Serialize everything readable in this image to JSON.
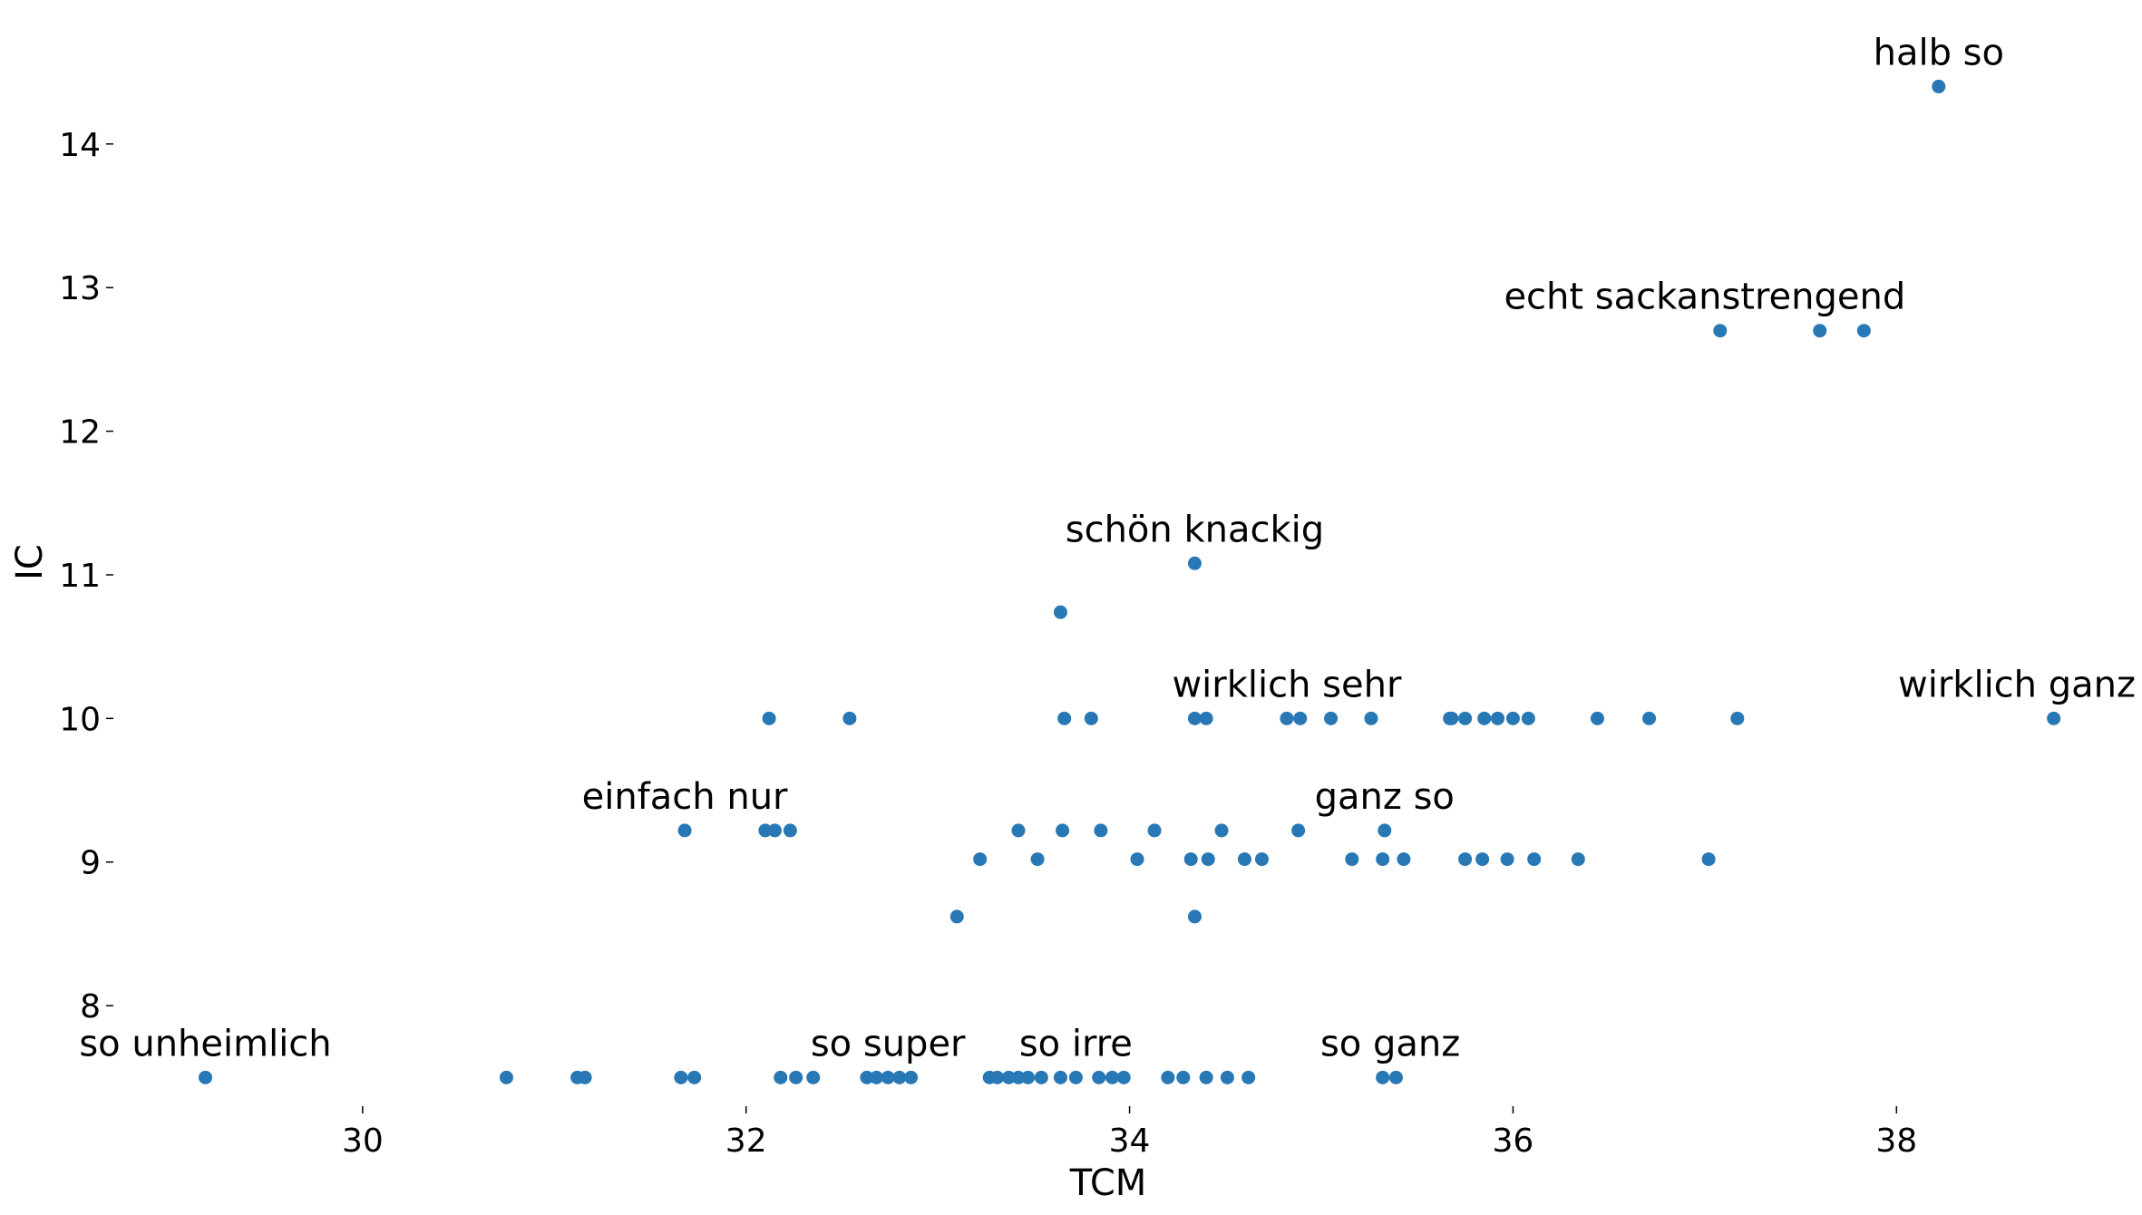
{
  "chart_data": {
    "type": "scatter",
    "title": "",
    "xlabel": "TCM",
    "ylabel": "IC",
    "xlim": [
      28.7,
      39.2
    ],
    "ylim": [
      7.3,
      14.75
    ],
    "x_ticks": [
      30,
      32,
      34,
      36,
      38
    ],
    "y_ticks": [
      8,
      9,
      10,
      11,
      12,
      13,
      14
    ],
    "grid": false,
    "legend": "none",
    "color": "#2878b5",
    "series": [
      {
        "points": [
          [
            38.22,
            14.4
          ],
          [
            37.08,
            12.7
          ],
          [
            37.6,
            12.7
          ],
          [
            37.83,
            12.7
          ],
          [
            34.34,
            11.08
          ],
          [
            33.64,
            10.74
          ],
          [
            32.12,
            10.0
          ],
          [
            32.54,
            10.0
          ],
          [
            33.66,
            10.0
          ],
          [
            33.8,
            10.0
          ],
          [
            34.34,
            10.0
          ],
          [
            34.4,
            10.0
          ],
          [
            34.82,
            10.0
          ],
          [
            34.89,
            10.0
          ],
          [
            35.05,
            10.0
          ],
          [
            35.26,
            10.0
          ],
          [
            35.67,
            10.0
          ],
          [
            35.68,
            10.0
          ],
          [
            35.75,
            10.0
          ],
          [
            35.85,
            10.0
          ],
          [
            35.92,
            10.0
          ],
          [
            36.0,
            10.0
          ],
          [
            36.08,
            10.0
          ],
          [
            36.44,
            10.0
          ],
          [
            36.71,
            10.0
          ],
          [
            37.17,
            10.0
          ],
          [
            38.82,
            10.0
          ],
          [
            31.68,
            9.22
          ],
          [
            32.1,
            9.22
          ],
          [
            32.15,
            9.22
          ],
          [
            32.23,
            9.22
          ],
          [
            33.42,
            9.22
          ],
          [
            33.65,
            9.22
          ],
          [
            33.85,
            9.22
          ],
          [
            34.13,
            9.22
          ],
          [
            34.48,
            9.22
          ],
          [
            34.88,
            9.22
          ],
          [
            35.33,
            9.22
          ],
          [
            33.22,
            9.02
          ],
          [
            33.52,
            9.02
          ],
          [
            34.04,
            9.02
          ],
          [
            34.32,
            9.02
          ],
          [
            34.41,
            9.02
          ],
          [
            34.6,
            9.02
          ],
          [
            34.69,
            9.02
          ],
          [
            35.16,
            9.02
          ],
          [
            35.32,
            9.02
          ],
          [
            35.43,
            9.02
          ],
          [
            35.75,
            9.02
          ],
          [
            35.84,
            9.02
          ],
          [
            35.97,
            9.02
          ],
          [
            36.11,
            9.02
          ],
          [
            36.34,
            9.02
          ],
          [
            37.02,
            9.02
          ],
          [
            33.1,
            8.62
          ],
          [
            34.34,
            8.62
          ],
          [
            29.18,
            7.5
          ],
          [
            30.75,
            7.5
          ],
          [
            31.12,
            7.5
          ],
          [
            31.16,
            7.5
          ],
          [
            31.66,
            7.5
          ],
          [
            31.73,
            7.5
          ],
          [
            32.18,
            7.5
          ],
          [
            32.26,
            7.5
          ],
          [
            32.35,
            7.5
          ],
          [
            32.63,
            7.5
          ],
          [
            32.68,
            7.5
          ],
          [
            32.74,
            7.5
          ],
          [
            32.8,
            7.5
          ],
          [
            32.86,
            7.5
          ],
          [
            33.27,
            7.5
          ],
          [
            33.31,
            7.5
          ],
          [
            33.37,
            7.5
          ],
          [
            33.42,
            7.5
          ],
          [
            33.47,
            7.5
          ],
          [
            33.54,
            7.5
          ],
          [
            33.64,
            7.5
          ],
          [
            33.72,
            7.5
          ],
          [
            33.84,
            7.5
          ],
          [
            33.91,
            7.5
          ],
          [
            33.97,
            7.5
          ],
          [
            34.2,
            7.5
          ],
          [
            34.28,
            7.5
          ],
          [
            34.4,
            7.5
          ],
          [
            34.51,
            7.5
          ],
          [
            34.62,
            7.5
          ],
          [
            35.32,
            7.5
          ],
          [
            35.39,
            7.5
          ]
        ]
      }
    ],
    "annotations": [
      {
        "text": "halb so",
        "x": 38.22,
        "y": 14.4
      },
      {
        "text": "echt sackanstrengend",
        "x": 37.0,
        "y": 12.7
      },
      {
        "text": "schön knackig",
        "x": 34.34,
        "y": 11.08
      },
      {
        "text": "wirklich sehr",
        "x": 34.82,
        "y": 10.0
      },
      {
        "text": "wirklich ganz",
        "x": 38.82,
        "y": 10.0
      },
      {
        "text": "einfach nur",
        "x": 31.68,
        "y": 9.22
      },
      {
        "text": "ganz so",
        "x": 35.33,
        "y": 9.22
      },
      {
        "text": "so unheimlich",
        "x": 29.18,
        "y": 7.5
      },
      {
        "text": "so super",
        "x": 32.74,
        "y": 7.5
      },
      {
        "text": "so irre",
        "x": 33.72,
        "y": 7.5
      },
      {
        "text": "so ganz",
        "x": 35.36,
        "y": 7.5
      }
    ]
  }
}
